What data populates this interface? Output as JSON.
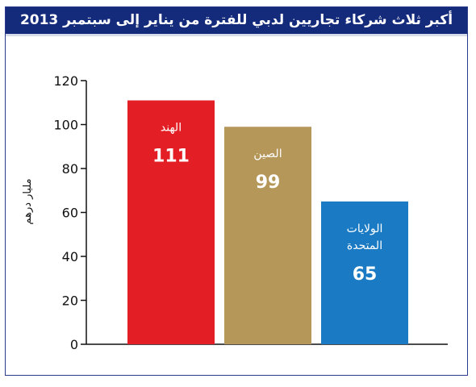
{
  "chart_data": {
    "type": "bar",
    "title": "أكبر ثلاث شركاء تجاريين لدبي للفترة من يناير إلى سبتمبر 2013",
    "ylabel": "مليار درهم",
    "xlabel": "",
    "ylim": [
      0,
      120
    ],
    "yticks": [
      0,
      20,
      40,
      60,
      80,
      100,
      120
    ],
    "categories": [
      [
        "الهند"
      ],
      [
        "الصين"
      ],
      [
        "الولايات",
        "المتحدة"
      ]
    ],
    "values": [
      111,
      99,
      65
    ],
    "value_labels": [
      "111",
      "99",
      "65"
    ],
    "colors": [
      "#e31e24",
      "#b5975a",
      "#1a7bc4"
    ],
    "grid": false,
    "legend": "none"
  }
}
